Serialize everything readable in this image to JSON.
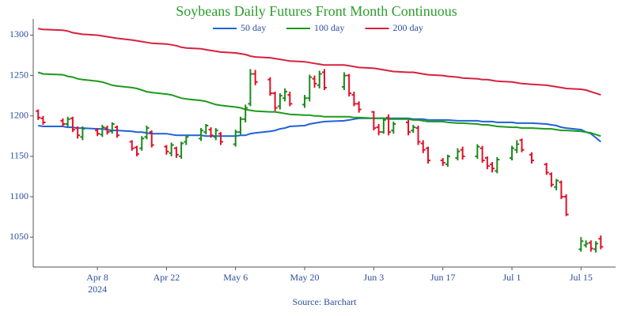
{
  "chart_data": {
    "type": "ohlc",
    "title": "Soybeans Daily Futures Front Month Continuous",
    "source": "Source: Barchart",
    "x": [
      "2024-03-27",
      "2024-03-28",
      "2024-04-01",
      "2024-04-02",
      "2024-04-03",
      "2024-04-04",
      "2024-04-05",
      "2024-04-08",
      "2024-04-09",
      "2024-04-10",
      "2024-04-11",
      "2024-04-12",
      "2024-04-15",
      "2024-04-16",
      "2024-04-17",
      "2024-04-18",
      "2024-04-19",
      "2024-04-22",
      "2024-04-23",
      "2024-04-24",
      "2024-04-25",
      "2024-04-26",
      "2024-04-29",
      "2024-04-30",
      "2024-05-01",
      "2024-05-02",
      "2024-05-03",
      "2024-05-06",
      "2024-05-07",
      "2024-05-08",
      "2024-05-09",
      "2024-05-10",
      "2024-05-13",
      "2024-05-14",
      "2024-05-15",
      "2024-05-16",
      "2024-05-17",
      "2024-05-20",
      "2024-05-21",
      "2024-05-22",
      "2024-05-23",
      "2024-05-24",
      "2024-05-28",
      "2024-05-29",
      "2024-05-30",
      "2024-05-31",
      "2024-06-03",
      "2024-06-04",
      "2024-06-05",
      "2024-06-06",
      "2024-06-07",
      "2024-06-10",
      "2024-06-11",
      "2024-06-12",
      "2024-06-13",
      "2024-06-14",
      "2024-06-17",
      "2024-06-18",
      "2024-06-20",
      "2024-06-21",
      "2024-06-24",
      "2024-06-25",
      "2024-06-26",
      "2024-06-27",
      "2024-06-28",
      "2024-07-01",
      "2024-07-02",
      "2024-07-03",
      "2024-07-05",
      "2024-07-08",
      "2024-07-09",
      "2024-07-10",
      "2024-07-11",
      "2024-07-12",
      "2024-07-15",
      "2024-07-16",
      "2024-07-17",
      "2024-07-18",
      "2024-07-19"
    ],
    "ohlc": {
      "open": [
        1206,
        1197,
        1194,
        1190,
        1197,
        1185,
        1174,
        1182,
        1177,
        1185,
        1181,
        1186,
        1168,
        1161,
        1160,
        1174,
        1180,
        1162,
        1154,
        1160,
        1150,
        1168,
        1172,
        1180,
        1183,
        1174,
        1178,
        1165,
        1180,
        1196,
        1215,
        1252,
        1245,
        1228,
        1212,
        1222,
        1226,
        1214,
        1222,
        1246,
        1238,
        1254,
        1236,
        1250,
        1226,
        1215,
        1205,
        1186,
        1180,
        1198,
        1182,
        1192,
        1182,
        1185,
        1166,
        1160,
        1145,
        1140,
        1148,
        1158,
        1150,
        1160,
        1148,
        1140,
        1132,
        1148,
        1158,
        1170,
        1152,
        1140,
        1128,
        1112,
        1118,
        1100,
        1035,
        1040,
        1043,
        1035,
        1048
      ],
      "high": [
        1208,
        1200,
        1197,
        1199,
        1199,
        1187,
        1187,
        1185,
        1189,
        1188,
        1192,
        1188,
        1170,
        1163,
        1175,
        1188,
        1182,
        1164,
        1167,
        1162,
        1168,
        1176,
        1185,
        1190,
        1186,
        1185,
        1180,
        1183,
        1199,
        1214,
        1258,
        1257,
        1248,
        1230,
        1228,
        1234,
        1230,
        1226,
        1251,
        1250,
        1256,
        1258,
        1254,
        1252,
        1230,
        1218,
        1206,
        1190,
        1198,
        1202,
        1193,
        1195,
        1189,
        1188,
        1170,
        1162,
        1148,
        1152,
        1160,
        1162,
        1165,
        1163,
        1150,
        1143,
        1149,
        1163,
        1170,
        1172,
        1155,
        1142,
        1130,
        1122,
        1120,
        1103,
        1050,
        1046,
        1046,
        1045,
        1052
      ],
      "low": [
        1195,
        1189,
        1187,
        1187,
        1180,
        1172,
        1170,
        1175,
        1174,
        1177,
        1178,
        1173,
        1157,
        1150,
        1157,
        1171,
        1161,
        1152,
        1150,
        1148,
        1147,
        1164,
        1169,
        1177,
        1173,
        1170,
        1164,
        1162,
        1177,
        1192,
        1212,
        1238,
        1225,
        1206,
        1208,
        1218,
        1212,
        1210,
        1218,
        1235,
        1234,
        1232,
        1232,
        1224,
        1212,
        1204,
        1182,
        1176,
        1178,
        1176,
        1178,
        1176,
        1179,
        1164,
        1154,
        1141,
        1138,
        1137,
        1145,
        1146,
        1147,
        1142,
        1134,
        1130,
        1129,
        1145,
        1154,
        1155,
        1141,
        1127,
        1112,
        1108,
        1097,
        1076,
        1032,
        1037,
        1032,
        1031,
        1035
      ],
      "close": [
        1198,
        1192,
        1190,
        1196,
        1183,
        1176,
        1184,
        1178,
        1186,
        1180,
        1190,
        1176,
        1160,
        1153,
        1172,
        1185,
        1164,
        1156,
        1164,
        1152,
        1166,
        1174,
        1182,
        1188,
        1176,
        1182,
        1168,
        1180,
        1196,
        1210,
        1252,
        1242,
        1228,
        1210,
        1225,
        1230,
        1215,
        1222,
        1248,
        1240,
        1252,
        1235,
        1250,
        1228,
        1215,
        1208,
        1185,
        1180,
        1195,
        1180,
        1190,
        1180,
        1186,
        1168,
        1158,
        1145,
        1142,
        1150,
        1156,
        1150,
        1162,
        1145,
        1138,
        1135,
        1146,
        1160,
        1165,
        1158,
        1145,
        1130,
        1115,
        1120,
        1100,
        1078,
        1045,
        1042,
        1036,
        1042,
        1038
      ],
      "up_color": "#1b8a1b",
      "down_color": "#e0102a"
    },
    "series": [
      {
        "name": "50 day",
        "color": "#1f62d6",
        "values": [
          1188,
          1187,
          1187,
          1186,
          1186,
          1185,
          1185,
          1184,
          1184,
          1183,
          1182,
          1182,
          1181,
          1180,
          1180,
          1179,
          1178,
          1178,
          1177,
          1176,
          1176,
          1176,
          1176,
          1175,
          1175,
          1175,
          1175,
          1175,
          1176,
          1176,
          1178,
          1179,
          1181,
          1182,
          1184,
          1185,
          1187,
          1188,
          1190,
          1191,
          1192,
          1193,
          1194,
          1195,
          1196,
          1197,
          1197,
          1197,
          1197,
          1197,
          1197,
          1197,
          1196,
          1196,
          1196,
          1195,
          1195,
          1195,
          1194,
          1194,
          1194,
          1193,
          1193,
          1193,
          1192,
          1192,
          1191,
          1191,
          1191,
          1190,
          1189,
          1188,
          1186,
          1185,
          1183,
          1180,
          1178,
          1173,
          1168
        ]
      },
      {
        "name": "100 day",
        "color": "#1c9a1c",
        "values": [
          1254,
          1252,
          1251,
          1249,
          1248,
          1246,
          1245,
          1243,
          1242,
          1240,
          1238,
          1237,
          1235,
          1234,
          1232,
          1230,
          1229,
          1227,
          1226,
          1224,
          1222,
          1221,
          1219,
          1218,
          1216,
          1214,
          1213,
          1211,
          1210,
          1208,
          1207,
          1206,
          1205,
          1205,
          1204,
          1203,
          1202,
          1201,
          1201,
          1200,
          1200,
          1199,
          1199,
          1199,
          1198,
          1198,
          1197,
          1197,
          1197,
          1196,
          1196,
          1196,
          1195,
          1195,
          1194,
          1193,
          1193,
          1192,
          1191,
          1191,
          1190,
          1189,
          1189,
          1188,
          1187,
          1186,
          1186,
          1185,
          1185,
          1184,
          1184,
          1183,
          1182,
          1182,
          1181,
          1180,
          1179,
          1177,
          1175
        ]
      },
      {
        "name": "200 day",
        "color": "#d8203e",
        "values": [
          1308,
          1307,
          1306,
          1305,
          1303,
          1302,
          1301,
          1300,
          1299,
          1298,
          1297,
          1296,
          1294,
          1293,
          1292,
          1291,
          1290,
          1289,
          1288,
          1287,
          1285,
          1284,
          1283,
          1282,
          1281,
          1280,
          1279,
          1278,
          1277,
          1276,
          1274,
          1273,
          1272,
          1271,
          1270,
          1269,
          1268,
          1267,
          1266,
          1265,
          1264,
          1263,
          1263,
          1262,
          1261,
          1260,
          1259,
          1258,
          1257,
          1256,
          1255,
          1254,
          1254,
          1253,
          1252,
          1251,
          1250,
          1249,
          1248,
          1247,
          1246,
          1245,
          1245,
          1244,
          1243,
          1242,
          1241,
          1240,
          1239,
          1238,
          1237,
          1236,
          1235,
          1234,
          1233,
          1232,
          1230,
          1228,
          1226
        ]
      }
    ],
    "xlim": [
      "2024-03-26",
      "2024-07-22"
    ],
    "xticks": [
      {
        "value": "2024-04-08",
        "label": "Apr 8"
      },
      {
        "value": "2024-04-22",
        "label": "Apr 22"
      },
      {
        "value": "2024-05-06",
        "label": "May 6"
      },
      {
        "value": "2024-05-20",
        "label": "May 20"
      },
      {
        "value": "2024-06-03",
        "label": "Jun 3"
      },
      {
        "value": "2024-06-17",
        "label": "Jun 17"
      },
      {
        "value": "2024-07-01",
        "label": "Jul 1"
      },
      {
        "value": "2024-07-15",
        "label": "Jul 15"
      }
    ],
    "x_year": "2024",
    "ylim": [
      1013,
      1320
    ],
    "yticks": [
      1050,
      1100,
      1150,
      1200,
      1250,
      1300
    ],
    "grid": false,
    "legend": "top"
  }
}
